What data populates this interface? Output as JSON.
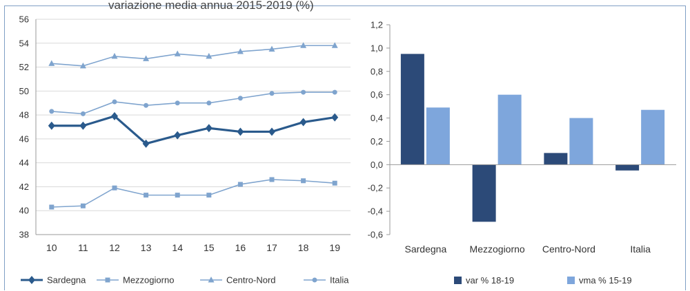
{
  "title_strip": "variazione media annua 2015-2019 (%)",
  "chart_data": [
    {
      "type": "line",
      "x": [
        "10",
        "11",
        "12",
        "13",
        "14",
        "15",
        "16",
        "17",
        "18",
        "19"
      ],
      "ylim": [
        38,
        56
      ],
      "yticks": [
        "38",
        "40",
        "42",
        "44",
        "46",
        "48",
        "50",
        "52",
        "54",
        "56"
      ],
      "grid": true,
      "legend_position": "bottom",
      "series": [
        {
          "name": "Sardegna",
          "color": "#2a5a8c",
          "marker": "diamond",
          "bold": true,
          "values": [
            47.1,
            47.1,
            47.9,
            45.6,
            46.3,
            46.9,
            46.6,
            46.6,
            47.4,
            47.8
          ]
        },
        {
          "name": "Mezzogiorno",
          "color": "#7fa4ce",
          "marker": "square",
          "values": [
            40.3,
            40.4,
            41.9,
            41.3,
            41.3,
            41.3,
            42.2,
            42.6,
            42.5,
            42.3
          ]
        },
        {
          "name": "Centro-Nord",
          "color": "#7fa4ce",
          "marker": "triangle",
          "values": [
            52.3,
            52.1,
            52.9,
            52.7,
            53.1,
            52.9,
            53.3,
            53.5,
            53.8,
            53.8
          ]
        },
        {
          "name": "Italia",
          "color": "#7fa4ce",
          "marker": "circle",
          "values": [
            48.3,
            48.1,
            49.1,
            48.8,
            49.0,
            49.0,
            49.4,
            49.8,
            49.9,
            49.9
          ]
        }
      ]
    },
    {
      "type": "bar",
      "categories": [
        "Sardegna",
        "Mezzogiorno",
        "Centro-Nord",
        "Italia"
      ],
      "ylim": [
        -0.6,
        1.2
      ],
      "yticks": [
        "-0,6",
        "-0,4",
        "-0,2",
        "0,0",
        "0,2",
        "0,4",
        "0,6",
        "0,8",
        "1,0",
        "1,2"
      ],
      "grid": false,
      "legend_position": "bottom",
      "series": [
        {
          "name": "var % 18-19",
          "color": "#2c4a78",
          "values": [
            0.95,
            -0.49,
            0.1,
            -0.05
          ]
        },
        {
          "name": "vma % 15-19",
          "color": "#7ea6dc",
          "values": [
            0.49,
            0.6,
            0.4,
            0.47
          ]
        }
      ]
    }
  ]
}
